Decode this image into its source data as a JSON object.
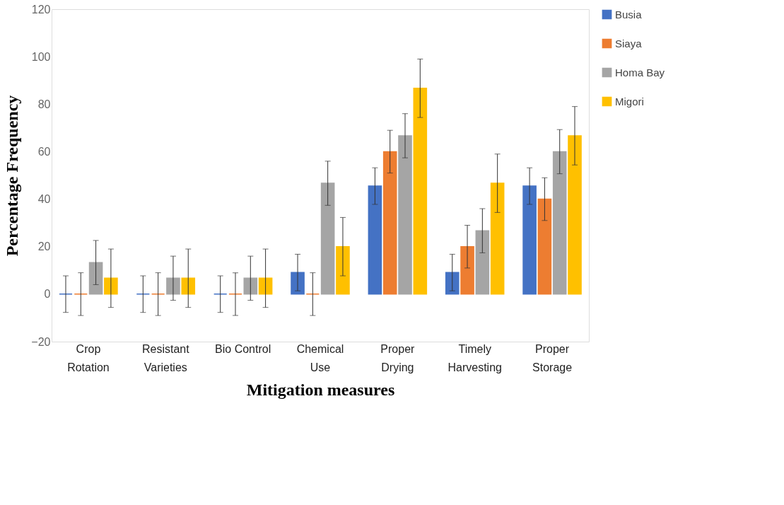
{
  "chart_data": {
    "type": "bar",
    "xlabel": "Mitigation measures",
    "ylabel": "Percentage Frequency",
    "categories": [
      "Crop Rotation",
      "Resistant Varieties",
      "Bio Control",
      "Chemical Use",
      "Proper Drying",
      "Timely Harvesting",
      "Proper Storage"
    ],
    "series": [
      {
        "name": "Busia",
        "color": "#4472c4",
        "values": [
          0,
          0,
          0,
          9.1,
          45.5,
          9.1,
          45.5
        ],
        "errors": [
          7.7,
          7.7,
          7.7,
          7.7,
          7.7,
          7.7,
          7.7
        ]
      },
      {
        "name": "Siaya",
        "color": "#ed7d31",
        "values": [
          0,
          0,
          0,
          0,
          60,
          20,
          40
        ],
        "errors": [
          9,
          9,
          9,
          9,
          9,
          9,
          9
        ]
      },
      {
        "name": "Homa Bay",
        "color": "#a5a5a5",
        "values": [
          13.3,
          6.7,
          6.7,
          46.7,
          66.7,
          26.7,
          60
        ],
        "errors": [
          9.3,
          9.3,
          9.3,
          9.3,
          9.3,
          9.3,
          9.3
        ]
      },
      {
        "name": "Migori",
        "color": "#ffc000",
        "values": [
          6.7,
          6.7,
          6.7,
          20,
          86.7,
          46.7,
          66.7
        ],
        "errors": [
          12.3,
          12.3,
          12.3,
          12.3,
          12.3,
          12.3,
          12.3
        ]
      }
    ],
    "ylim": [
      -20,
      120
    ],
    "yticks": [
      -20,
      0,
      20,
      40,
      60,
      80,
      100,
      120
    ],
    "grid": false,
    "legend": "right"
  }
}
